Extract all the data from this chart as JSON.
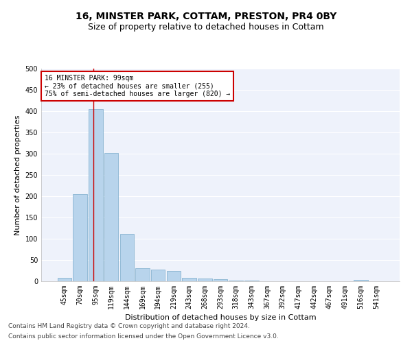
{
  "title": "16, MINSTER PARK, COTTAM, PRESTON, PR4 0BY",
  "subtitle": "Size of property relative to detached houses in Cottam",
  "xlabel": "Distribution of detached houses by size in Cottam",
  "ylabel": "Number of detached properties",
  "bar_color": "#b8d4ec",
  "bar_edge_color": "#7aaaca",
  "categories": [
    "45sqm",
    "70sqm",
    "95sqm",
    "119sqm",
    "144sqm",
    "169sqm",
    "194sqm",
    "219sqm",
    "243sqm",
    "268sqm",
    "293sqm",
    "318sqm",
    "343sqm",
    "367sqm",
    "392sqm",
    "417sqm",
    "442sqm",
    "467sqm",
    "491sqm",
    "516sqm",
    "541sqm"
  ],
  "values": [
    8,
    205,
    405,
    302,
    112,
    30,
    27,
    25,
    8,
    7,
    5,
    2,
    1,
    0,
    0,
    0,
    0,
    0,
    0,
    4,
    0
  ],
  "ylim": [
    0,
    500
  ],
  "yticks": [
    0,
    50,
    100,
    150,
    200,
    250,
    300,
    350,
    400,
    450,
    500
  ],
  "property_line_x": 1.85,
  "annotation_text": "16 MINSTER PARK: 99sqm\n← 23% of detached houses are smaller (255)\n75% of semi-detached houses are larger (820) →",
  "annotation_box_color": "#ffffff",
  "annotation_border_color": "#cc0000",
  "footer_line1": "Contains HM Land Registry data © Crown copyright and database right 2024.",
  "footer_line2": "Contains public sector information licensed under the Open Government Licence v3.0.",
  "background_color": "#eef2fb",
  "grid_color": "#ffffff",
  "fig_bg_color": "#ffffff",
  "title_fontsize": 10,
  "subtitle_fontsize": 9,
  "axis_label_fontsize": 8,
  "tick_fontsize": 7,
  "annotation_fontsize": 7,
  "footer_fontsize": 6.5
}
